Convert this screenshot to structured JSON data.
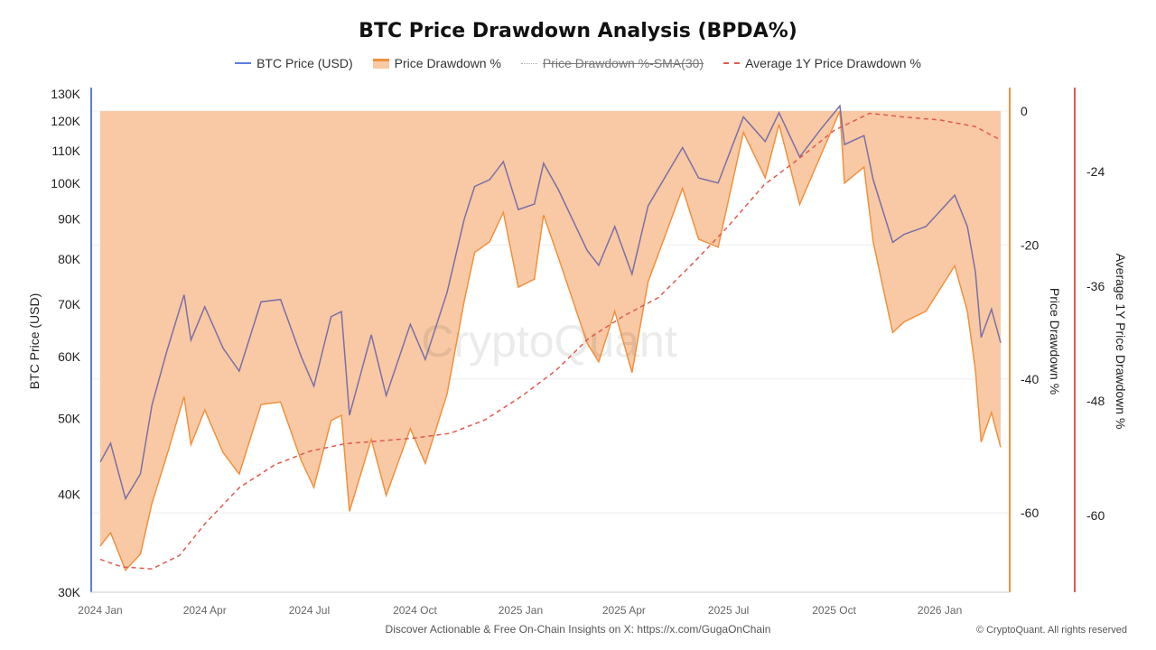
{
  "chart_data": {
    "type": "line",
    "title": "BTC Price Drawdown Analysis (BPDA%)",
    "legend": [
      {
        "name": "BTC Price (USD)",
        "color": "#5b7de0",
        "visible": true
      },
      {
        "name": "Price Drawdown %",
        "color": "#f0913f",
        "fill": "#f8c9a4",
        "visible": true
      },
      {
        "name": "Price Drawdown %-SMA(30)",
        "color": "#aaaaaa",
        "visible": false
      },
      {
        "name": "Average 1Y Price Drawdown %",
        "color": "#e05a4f",
        "dashed": true,
        "visible": true
      }
    ],
    "legend_position": "top",
    "x_ticks": [
      "2024 Jan",
      "2024 Apr",
      "2024 Jul",
      "2024 Oct",
      "2025 Jan",
      "2025 Apr",
      "2025 Jul",
      "2025 Oct",
      "2026 Jan"
    ],
    "x_tick_dates": [
      "2024-01-01",
      "2024-04-01",
      "2024-07-01",
      "2024-10-01",
      "2025-01-01",
      "2025-04-01",
      "2025-07-01",
      "2025-10-01",
      "2026-01-01"
    ],
    "x_range": [
      "2024-01-01",
      "2026-02-23"
    ],
    "y_left": {
      "label": "BTC Price (USD)",
      "scale": "log",
      "range": [
        30000,
        130000
      ],
      "ticks": [
        "30K",
        "40K",
        "50K",
        "60K",
        "70K",
        "80K",
        "90K",
        "100K",
        "110K",
        "120K",
        "130K"
      ],
      "tick_values": [
        30000,
        40000,
        50000,
        60000,
        70000,
        80000,
        90000,
        100000,
        110000,
        120000,
        130000
      ]
    },
    "y_right1": {
      "label": "Price Drawdown %",
      "range": [
        -72,
        0
      ],
      "ticks": [
        "0",
        "-20",
        "-40",
        "-60"
      ],
      "tick_values": [
        0,
        -20,
        -40,
        -60
      ]
    },
    "y_right2": {
      "label": "Average 1Y Price Drawdown %",
      "range": [
        -68,
        -16
      ],
      "ticks": [
        "-24",
        "-36",
        "-48",
        "-60"
      ],
      "tick_values": [
        -24,
        -36,
        -48,
        -60
      ]
    },
    "grid": true,
    "btc_price": [
      [
        "2024-01-01",
        44000
      ],
      [
        "2024-01-10",
        46500
      ],
      [
        "2024-01-23",
        39500
      ],
      [
        "2024-02-05",
        42500
      ],
      [
        "2024-02-15",
        52000
      ],
      [
        "2024-02-28",
        61000
      ],
      [
        "2024-03-14",
        72000
      ],
      [
        "2024-03-20",
        63000
      ],
      [
        "2024-04-01",
        69500
      ],
      [
        "2024-04-17",
        61500
      ],
      [
        "2024-05-01",
        57500
      ],
      [
        "2024-05-20",
        70500
      ],
      [
        "2024-06-06",
        71000
      ],
      [
        "2024-06-24",
        60000
      ],
      [
        "2024-07-05",
        55000
      ],
      [
        "2024-07-20",
        67500
      ],
      [
        "2024-07-29",
        68500
      ],
      [
        "2024-08-05",
        50500
      ],
      [
        "2024-08-24",
        64000
      ],
      [
        "2024-09-06",
        53500
      ],
      [
        "2024-09-27",
        66000
      ],
      [
        "2024-10-10",
        59500
      ],
      [
        "2024-10-29",
        72500
      ],
      [
        "2024-11-13",
        90000
      ],
      [
        "2024-11-22",
        99000
      ],
      [
        "2024-12-05",
        101000
      ],
      [
        "2024-12-17",
        106500
      ],
      [
        "2024-12-30",
        92500
      ],
      [
        "2025-01-13",
        94000
      ],
      [
        "2025-01-21",
        106000
      ],
      [
        "2025-02-03",
        98000
      ],
      [
        "2025-02-28",
        82000
      ],
      [
        "2025-03-10",
        78500
      ],
      [
        "2025-03-24",
        88000
      ],
      [
        "2025-04-08",
        76500
      ],
      [
        "2025-04-22",
        93500
      ],
      [
        "2025-05-22",
        111000
      ],
      [
        "2025-06-05",
        101500
      ],
      [
        "2025-06-22",
        100000
      ],
      [
        "2025-07-14",
        121500
      ],
      [
        "2025-08-02",
        113000
      ],
      [
        "2025-08-14",
        123000
      ],
      [
        "2025-09-01",
        108000
      ],
      [
        "2025-09-19",
        117000
      ],
      [
        "2025-10-06",
        125500
      ],
      [
        "2025-10-10",
        112000
      ],
      [
        "2025-10-27",
        115000
      ],
      [
        "2025-11-04",
        101000
      ],
      [
        "2025-11-21",
        84000
      ],
      [
        "2025-12-01",
        86000
      ],
      [
        "2025-12-20",
        88000
      ],
      [
        "2026-01-14",
        96500
      ],
      [
        "2026-01-25",
        88000
      ],
      [
        "2026-02-01",
        77000
      ],
      [
        "2026-02-06",
        63500
      ],
      [
        "2026-02-15",
        69000
      ],
      [
        "2026-02-23",
        62500
      ]
    ],
    "avg_1y_drawdown": [
      [
        "2024-01-01",
        -64.6
      ],
      [
        "2024-01-20",
        -65.4
      ],
      [
        "2024-02-15",
        -65.6
      ],
      [
        "2024-03-10",
        -64.2
      ],
      [
        "2024-04-01",
        -60.9
      ],
      [
        "2024-05-01",
        -57.1
      ],
      [
        "2024-06-01",
        -54.7
      ],
      [
        "2024-07-01",
        -53.3
      ],
      [
        "2024-08-01",
        -52.5
      ],
      [
        "2024-09-01",
        -52.2
      ],
      [
        "2024-10-01",
        -51.9
      ],
      [
        "2024-11-01",
        -51.4
      ],
      [
        "2024-12-01",
        -50.0
      ],
      [
        "2025-01-01",
        -47.6
      ],
      [
        "2025-02-01",
        -44.8
      ],
      [
        "2025-03-01",
        -41.5
      ],
      [
        "2025-04-01",
        -39.1
      ],
      [
        "2025-05-01",
        -37.2
      ],
      [
        "2025-06-01",
        -33.5
      ],
      [
        "2025-07-01",
        -29.7
      ],
      [
        "2025-08-01",
        -25.4
      ],
      [
        "2025-09-01",
        -22.6
      ],
      [
        "2025-10-01",
        -19.7
      ],
      [
        "2025-11-01",
        -17.9
      ],
      [
        "2025-12-01",
        -18.3
      ],
      [
        "2026-01-01",
        -18.6
      ],
      [
        "2026-02-01",
        -19.3
      ],
      [
        "2026-02-23",
        -20.7
      ]
    ]
  },
  "watermark": "CryptoQuant",
  "footer": {
    "text": "Discover Actionable & Free On-Chain Insights on X: ",
    "link": "https://x.com/GugaOnChain",
    "copyright": "© CryptoQuant. All rights reserved"
  }
}
